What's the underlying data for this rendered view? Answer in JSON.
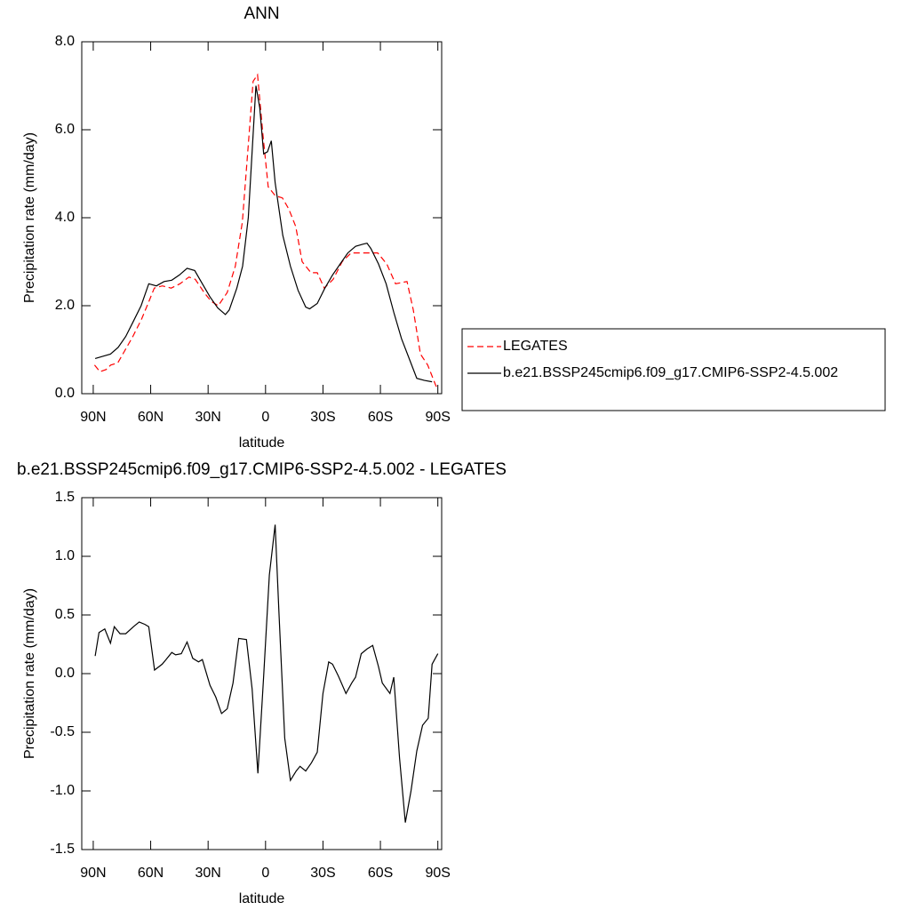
{
  "chart_data": [
    {
      "type": "line",
      "title": "ANN",
      "xlabel": "latitude",
      "ylabel": "Precipitation rate (mm/day)",
      "xlim": [
        96,
        -92
      ],
      "ylim": [
        0,
        8
      ],
      "xticks": [
        {
          "value": 90,
          "label": "90N"
        },
        {
          "value": 60,
          "label": "60N"
        },
        {
          "value": 30,
          "label": "30N"
        },
        0,
        {
          "value": -30,
          "label": "30S"
        },
        {
          "value": -60,
          "label": "60S"
        },
        {
          "value": -90,
          "label": "90S"
        }
      ],
      "yticks": [
        {
          "value": 0,
          "label": "0.0"
        },
        {
          "value": 2,
          "label": "2.0"
        },
        {
          "value": 4,
          "label": "4.0"
        },
        {
          "value": 6,
          "label": "6.0"
        },
        {
          "value": 8,
          "label": "8.0"
        }
      ],
      "legend": "right",
      "series": [
        {
          "name": "LEGATES",
          "color": "#ff0000",
          "dashed": true,
          "x": [
            89.3,
            86.5,
            83.3,
            80.9,
            77.2,
            73.9,
            69.3,
            64.7,
            60.9,
            58.1,
            53.9,
            49.3,
            44.7,
            40.0,
            36.7,
            32.1,
            28.4,
            24.7,
            20.0,
            15.8,
            12.1,
            9.3,
            6.5,
            4.2,
            1.4,
            -1.4,
            -5.1,
            -8.8,
            -12.1,
            -15.8,
            -19.1,
            -23.7,
            -27.0,
            -30.7,
            -35.3,
            -40.0,
            -44.7,
            -49.3,
            -53.9,
            -58.6,
            -63.3,
            -67.9,
            -73.9,
            -77.2,
            -80.9,
            -84.7,
            -88.8,
            -90
          ],
          "values": [
            0.65,
            0.5,
            0.55,
            0.65,
            0.7,
            0.95,
            1.3,
            1.7,
            2.1,
            2.4,
            2.45,
            2.4,
            2.5,
            2.65,
            2.6,
            2.3,
            2.1,
            2.0,
            2.3,
            2.9,
            3.9,
            5.5,
            7.1,
            7.25,
            5.9,
            4.7,
            4.5,
            4.45,
            4.2,
            3.8,
            3.0,
            2.75,
            2.75,
            2.4,
            2.6,
            3.0,
            3.2,
            3.2,
            3.2,
            3.2,
            2.95,
            2.5,
            2.55,
            1.9,
            0.9,
            0.65,
            0.2,
            0.1
          ]
        },
        {
          "name": "b.e21.BSSP245cmip6.f09_g17.CMIP6-SSP2-4.5.002",
          "color": "#000000",
          "dashed": false,
          "x": [
            89,
            85,
            81,
            77,
            73,
            69,
            65,
            61,
            57,
            53,
            49,
            45,
            41,
            37,
            33,
            29,
            25,
            21,
            19,
            15,
            12,
            9,
            7,
            5,
            3,
            1,
            -1,
            -3,
            -5,
            -9,
            -13,
            -17,
            -21,
            -23,
            -27,
            -31,
            -35,
            -39,
            -43,
            -47,
            -51,
            -53,
            -55,
            -59,
            -63,
            -67,
            -71,
            -75,
            -79,
            -83,
            -87
          ],
          "values": [
            0.8,
            0.85,
            0.9,
            1.05,
            1.3,
            1.65,
            2.0,
            2.5,
            2.45,
            2.55,
            2.58,
            2.7,
            2.85,
            2.8,
            2.5,
            2.2,
            1.95,
            1.8,
            1.9,
            2.4,
            2.9,
            4.0,
            5.5,
            7.0,
            6.5,
            5.45,
            5.5,
            5.75,
            4.8,
            3.6,
            2.9,
            2.35,
            1.97,
            1.93,
            2.05,
            2.4,
            2.7,
            2.95,
            3.2,
            3.35,
            3.4,
            3.42,
            3.3,
            2.95,
            2.5,
            1.85,
            1.25,
            0.8,
            0.35,
            0.3,
            0.27
          ]
        }
      ]
    },
    {
      "type": "line",
      "title": "b.e21.BSSP245cmip6.f09_g17.CMIP6-SSP2-4.5.002 - LEGATES",
      "xlabel": "latitude",
      "ylabel": "Precipitation rate (mm/day)",
      "xlim": [
        96,
        -92
      ],
      "ylim": [
        -1.5,
        1.5
      ],
      "xticks": [
        {
          "value": 90,
          "label": "90N"
        },
        {
          "value": 60,
          "label": "60N"
        },
        {
          "value": 30,
          "label": "30N"
        },
        0,
        {
          "value": -30,
          "label": "30S"
        },
        {
          "value": -60,
          "label": "60S"
        },
        {
          "value": -90,
          "label": "90S"
        }
      ],
      "yticks": [
        {
          "value": -1.5,
          "label": "-1.5"
        },
        {
          "value": -1,
          "label": "-1.0"
        },
        {
          "value": -0.5,
          "label": "-0.5"
        },
        {
          "value": 0,
          "label": "0.0"
        },
        {
          "value": 0.5,
          "label": "0.5"
        },
        {
          "value": 1,
          "label": "1.0"
        },
        {
          "value": 1.5,
          "label": "1.5"
        }
      ],
      "series": [
        {
          "color": "#000000",
          "dashed": false,
          "x": [
            89,
            87,
            84,
            81,
            79,
            76,
            73,
            69,
            66,
            63,
            61,
            58,
            54,
            52,
            49,
            47,
            44,
            41,
            38,
            35,
            33,
            29,
            26,
            23,
            20,
            17,
            14,
            10,
            7,
            4,
            1,
            -2,
            -5,
            -7,
            -10,
            -13,
            -16,
            -18,
            -21,
            -24,
            -27,
            -30,
            -33,
            -35,
            -38,
            -42,
            -45,
            -47,
            -50,
            -53,
            -56,
            -59,
            -61,
            -65,
            -67,
            -70,
            -73,
            -76,
            -79,
            -82,
            -85,
            -87,
            -90
          ],
          "values": [
            0.15,
            0.35,
            0.38,
            0.26,
            0.4,
            0.34,
            0.34,
            0.4,
            0.44,
            0.42,
            0.4,
            0.03,
            0.08,
            0.12,
            0.18,
            0.16,
            0.17,
            0.27,
            0.13,
            0.1,
            0.12,
            -0.1,
            -0.2,
            -0.34,
            -0.3,
            -0.08,
            0.3,
            0.29,
            -0.13,
            -0.85,
            -0.02,
            0.84,
            1.27,
            0.52,
            -0.55,
            -0.91,
            -0.83,
            -0.79,
            -0.83,
            -0.76,
            -0.67,
            -0.17,
            0.1,
            0.08,
            -0.02,
            -0.17,
            -0.08,
            -0.03,
            0.17,
            0.21,
            0.24,
            0.06,
            -0.08,
            -0.17,
            -0.03,
            -0.72,
            -1.27,
            -1.0,
            -0.66,
            -0.44,
            -0.38,
            0.08,
            0.17
          ]
        }
      ]
    }
  ]
}
